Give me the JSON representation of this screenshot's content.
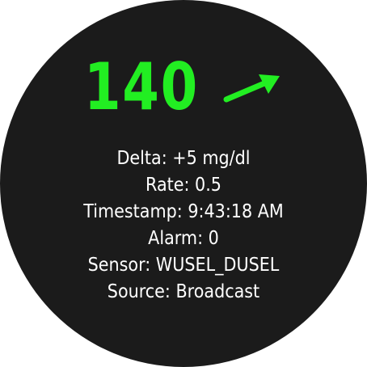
{
  "reading": {
    "value": "140",
    "trend": "rising-slightly",
    "trend_icon": "arrow-up-right-icon",
    "color": "#22ee22"
  },
  "details": {
    "delta": "Delta: +5 mg/dl",
    "rate": "Rate: 0.5",
    "timestamp": "Timestamp: 9:43:18 AM",
    "alarm": "Alarm: 0",
    "sensor": "Sensor: WUSEL_DUSEL",
    "source": "Source: Broadcast"
  },
  "colors": {
    "face_background": "#1b1b1b",
    "text": "#ffffff",
    "accent": "#22ee22"
  }
}
